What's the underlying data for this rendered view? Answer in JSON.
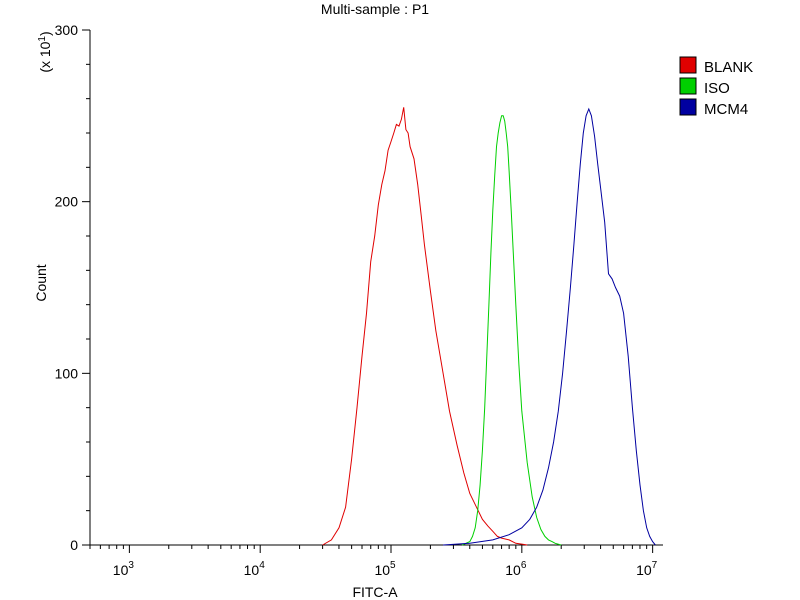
{
  "chart_data": {
    "type": "line",
    "title": "Multi-sample : P1",
    "xlabel": "FITC-A",
    "ylabel": "Count",
    "y_multiplier_label": "(x 10",
    "y_multiplier_exp": "1",
    "x_scale": "log",
    "xlim": [
      500,
      12000000
    ],
    "ylim": [
      0,
      300
    ],
    "x_ticks": [
      {
        "base": "10",
        "exp": "3",
        "value": 1000
      },
      {
        "base": "10",
        "exp": "4",
        "value": 10000
      },
      {
        "base": "10",
        "exp": "5",
        "value": 100000
      },
      {
        "base": "10",
        "exp": "6",
        "value": 1000000
      },
      {
        "base": "10",
        "exp": "7",
        "value": 10000000
      }
    ],
    "y_ticks": [
      {
        "label": "0",
        "value": 0
      },
      {
        "label": "100",
        "value": 100
      },
      {
        "label": "200",
        "value": 200
      },
      {
        "label": "300",
        "value": 300
      }
    ],
    "legend_position": "top-right",
    "grid": false,
    "series": [
      {
        "name": "BLANK",
        "color": "#e00000",
        "x": [
          30000,
          35000,
          40000,
          45000,
          50000,
          55000,
          60000,
          65000,
          70000,
          75000,
          80000,
          85000,
          90000,
          95000,
          100000,
          105000,
          110000,
          115000,
          120000,
          125000,
          130000,
          135000,
          140000,
          150000,
          160000,
          170000,
          180000,
          200000,
          220000,
          250000,
          280000,
          320000,
          360000,
          400000,
          450000,
          500000,
          550000,
          600000,
          650000,
          700000,
          800000,
          900000,
          1000000,
          1100000
        ],
        "y": [
          0,
          3,
          10,
          22,
          50,
          80,
          110,
          135,
          165,
          180,
          198,
          210,
          218,
          230,
          235,
          240,
          245,
          244,
          248,
          255,
          242,
          240,
          232,
          225,
          210,
          192,
          175,
          148,
          125,
          100,
          78,
          58,
          42,
          30,
          22,
          15,
          11,
          8,
          5,
          4,
          3,
          1,
          0.5,
          0
        ]
      },
      {
        "name": "ISO",
        "color": "#00d000",
        "x": [
          350000,
          400000,
          420000,
          440000,
          460000,
          480000,
          500000,
          520000,
          540000,
          560000,
          580000,
          600000,
          620000,
          640000,
          660000,
          680000,
          700000,
          720000,
          740000,
          760000,
          780000,
          800000,
          830000,
          860000,
          900000,
          950000,
          1000000,
          1100000,
          1200000,
          1300000,
          1400000,
          1500000,
          1600000,
          1700000,
          1800000,
          2000000
        ],
        "y": [
          0,
          2,
          5,
          10,
          20,
          35,
          55,
          80,
          110,
          140,
          170,
          195,
          215,
          232,
          240,
          246,
          250,
          250,
          247,
          240,
          232,
          218,
          195,
          170,
          140,
          105,
          78,
          48,
          28,
          16,
          9,
          5,
          3,
          2,
          1,
          0
        ]
      },
      {
        "name": "MCM4",
        "color": "#0000a0",
        "x": [
          250000,
          400000,
          600000,
          800000,
          1000000,
          1150000,
          1300000,
          1450000,
          1600000,
          1750000,
          1900000,
          2050000,
          2200000,
          2350000,
          2500000,
          2650000,
          2800000,
          2950000,
          3100000,
          3250000,
          3400000,
          3600000,
          3800000,
          4000000,
          4300000,
          4600000,
          4900000,
          5200000,
          5600000,
          6000000,
          6500000,
          7000000,
          7500000,
          8000000,
          8500000,
          9000000,
          9500000,
          10000000,
          10500000
        ],
        "y": [
          0,
          1,
          3,
          6,
          10,
          15,
          22,
          32,
          45,
          60,
          78,
          100,
          125,
          150,
          175,
          200,
          222,
          240,
          250,
          254,
          250,
          238,
          222,
          208,
          188,
          158,
          155,
          150,
          145,
          135,
          110,
          80,
          55,
          35,
          20,
          10,
          5,
          2,
          0
        ]
      }
    ]
  }
}
